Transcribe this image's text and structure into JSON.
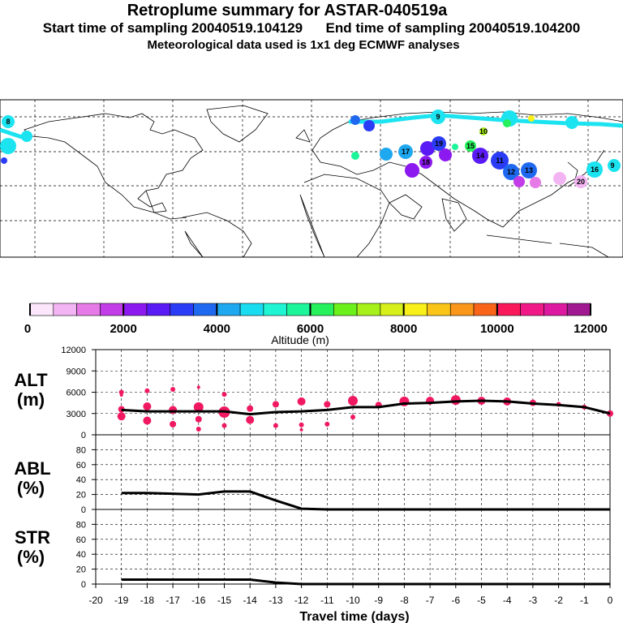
{
  "header": {
    "title": "Retroplume summary for ASTAR-040519a",
    "start_sampling": "Start time of sampling 20040519.104129",
    "end_sampling": "End time of sampling 20040519.104200",
    "met_data": "Meteorological data used is 1x1 deg ECMWF analyses"
  },
  "colorbar": {
    "title": "Altitude (m)",
    "tick_labels": [
      "0",
      "2000",
      "4000",
      "6000",
      "8000",
      "10000",
      "12000"
    ],
    "colors": [
      "#fbe6fb",
      "#f3b4f3",
      "#e67ae6",
      "#c23ce8",
      "#8c19f0",
      "#5a1af5",
      "#2a3cf5",
      "#1f69f0",
      "#1ea8f0",
      "#19dcf0",
      "#1ff5d2",
      "#1cf59a",
      "#26f05c",
      "#6cf019",
      "#a8f019",
      "#d8f019",
      "#faf019",
      "#fac419",
      "#fa9619",
      "#fa6419",
      "#fa195a",
      "#f01987",
      "#dc19a0",
      "#a01990"
    ]
  },
  "map": {
    "plume_labels": [
      "8",
      "9",
      "9",
      "10",
      "11",
      "12",
      "13",
      "14",
      "15",
      "16",
      "17",
      "18",
      "19",
      "20"
    ]
  },
  "chart_data": [
    {
      "type": "line",
      "name": "ALT",
      "ylabel": "ALT\n(m)",
      "ylabel_lines": [
        "ALT",
        "(m)"
      ],
      "xlabel": "Travel time (days)",
      "x_ticks": [
        -20,
        -19,
        -18,
        -17,
        -16,
        -15,
        -14,
        -13,
        -12,
        -11,
        -10,
        -9,
        -8,
        -7,
        -6,
        -5,
        -4,
        -3,
        -2,
        -1,
        0
      ],
      "y_ticks": [
        0,
        3000,
        6000,
        9000,
        12000
      ],
      "ylim": [
        0,
        12000
      ],
      "xlim": [
        -20,
        0
      ],
      "grid": true,
      "x": [
        -19,
        -18,
        -17,
        -16,
        -15,
        -14,
        -13,
        -12,
        -11,
        -10,
        -9,
        -8,
        -7,
        -6,
        -5,
        -4,
        -3,
        -2,
        -1,
        0
      ],
      "values": [
        3500,
        3300,
        3300,
        3300,
        3300,
        2900,
        3200,
        3300,
        3500,
        3900,
        3900,
        4400,
        4500,
        4700,
        4800,
        4700,
        4400,
        4200,
        3900,
        3000
      ],
      "cluster_points": [
        {
          "x": -19,
          "y": 6000,
          "s": 3
        },
        {
          "x": -19,
          "y": 5600,
          "s": 2
        },
        {
          "x": -19,
          "y": 3600,
          "s": 4
        },
        {
          "x": -19,
          "y": 2600,
          "s": 5
        },
        {
          "x": -18,
          "y": 6200,
          "s": 3
        },
        {
          "x": -18,
          "y": 4000,
          "s": 5
        },
        {
          "x": -18,
          "y": 2000,
          "s": 5
        },
        {
          "x": -17,
          "y": 6400,
          "s": 3
        },
        {
          "x": -17,
          "y": 3500,
          "s": 5
        },
        {
          "x": -17,
          "y": 1500,
          "s": 4
        },
        {
          "x": -16,
          "y": 6700,
          "s": 2
        },
        {
          "x": -16,
          "y": 3900,
          "s": 6
        },
        {
          "x": -16,
          "y": 2200,
          "s": 4
        },
        {
          "x": -16,
          "y": 800,
          "s": 3
        },
        {
          "x": -15,
          "y": 5700,
          "s": 3
        },
        {
          "x": -15,
          "y": 3200,
          "s": 7
        },
        {
          "x": -15,
          "y": 1300,
          "s": 3
        },
        {
          "x": -14,
          "y": 3700,
          "s": 4
        },
        {
          "x": -14,
          "y": 2100,
          "s": 5
        },
        {
          "x": -13,
          "y": 4300,
          "s": 4
        },
        {
          "x": -13,
          "y": 1300,
          "s": 3
        },
        {
          "x": -12,
          "y": 4700,
          "s": 5
        },
        {
          "x": -12,
          "y": 1400,
          "s": 3
        },
        {
          "x": -12,
          "y": 700,
          "s": 2
        },
        {
          "x": -11,
          "y": 4300,
          "s": 4
        },
        {
          "x": -11,
          "y": 1500,
          "s": 3
        },
        {
          "x": -10,
          "y": 4800,
          "s": 6
        },
        {
          "x": -10,
          "y": 2500,
          "s": 3
        },
        {
          "x": -9,
          "y": 4200,
          "s": 4
        },
        {
          "x": -8,
          "y": 4700,
          "s": 6
        },
        {
          "x": -7,
          "y": 4800,
          "s": 5
        },
        {
          "x": -6,
          "y": 4900,
          "s": 6
        },
        {
          "x": -5,
          "y": 4800,
          "s": 5
        },
        {
          "x": -4,
          "y": 4700,
          "s": 5
        },
        {
          "x": -3,
          "y": 4500,
          "s": 4
        },
        {
          "x": -2,
          "y": 4300,
          "s": 3
        },
        {
          "x": -1,
          "y": 3900,
          "s": 3
        },
        {
          "x": 0,
          "y": 3000,
          "s": 4
        }
      ]
    },
    {
      "type": "line",
      "name": "ABL",
      "ylabel": "ABL\n(%)",
      "ylabel_lines": [
        "ABL",
        "(%)"
      ],
      "y_ticks": [
        0,
        20,
        40,
        60,
        80
      ],
      "tick_labels_extra": [
        "0",
        "20",
        "40",
        "60",
        "80"
      ],
      "ylim": [
        0,
        100
      ],
      "xlim": [
        -20,
        0
      ],
      "grid": true,
      "x": [
        -19,
        -18,
        -17,
        -16,
        -15,
        -14,
        -13,
        -12,
        -11,
        -10,
        -9,
        -8,
        -7,
        -6,
        -5,
        -4,
        -3,
        -2,
        -1,
        0
      ],
      "values": [
        22,
        22,
        21,
        20,
        24,
        24,
        12,
        1,
        0,
        0,
        0,
        0,
        0,
        0,
        0,
        0,
        0,
        0,
        0,
        0
      ]
    },
    {
      "type": "line",
      "name": "STR",
      "ylabel": "STR\n(%)",
      "ylabel_lines": [
        "STR",
        "(%)"
      ],
      "y_ticks": [
        0,
        20,
        40,
        60,
        80
      ],
      "ylim": [
        0,
        100
      ],
      "xlim": [
        -20,
        0
      ],
      "grid": true,
      "x": [
        -19,
        -18,
        -17,
        -16,
        -15,
        -14,
        -13,
        -12,
        -11,
        -10,
        -9,
        -8,
        -7,
        -6,
        -5,
        -4,
        -3,
        -2,
        -1,
        0
      ],
      "values": [
        6,
        6,
        6,
        6,
        6,
        6,
        2,
        0,
        0,
        0,
        0,
        0,
        0,
        0,
        0,
        0,
        0,
        0,
        0,
        0
      ]
    }
  ]
}
